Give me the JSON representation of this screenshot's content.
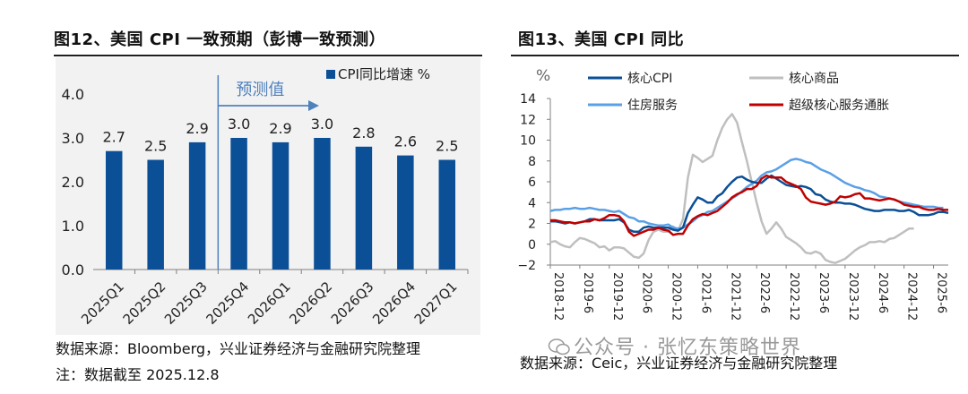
{
  "left": {
    "title": "图12、美国 CPI 一致预期（彭博一致预测）",
    "source": "数据来源：Bloomberg，兴业证券经济与金融研究院整理",
    "note": "注：数据截至 2025.12.8"
  },
  "right": {
    "title": "图13、美国 CPI 同比",
    "source": "数据来源：Ceic，兴业证券经济与金融研究院整理"
  },
  "watermark": "公众号 · 张忆东策略世界",
  "colors": {
    "bar": "#0b4f96",
    "core_cpi": "#0b4f96",
    "core_goods": "#bfbfbf",
    "shelter": "#5aa0e6",
    "supercore": "#c00000",
    "forecast_arrow": "#4f81bd"
  },
  "chart_data": [
    {
      "type": "bar",
      "categories": [
        "2025Q1",
        "2025Q2",
        "2025Q3",
        "2025Q4",
        "2026Q1",
        "2026Q2",
        "2026Q3",
        "2026Q4",
        "2027Q1"
      ],
      "series": [
        {
          "name": "CPI同比增速 %",
          "values": [
            2.7,
            2.5,
            2.9,
            3.0,
            2.9,
            3.0,
            2.8,
            2.6,
            2.5
          ]
        }
      ],
      "data_labels": [
        "2.7",
        "2.5",
        "2.9",
        "3.0",
        "2.9",
        "3.0",
        "2.8",
        "2.6",
        "2.5"
      ],
      "ylim": [
        0,
        4
      ],
      "yticks": [
        "0.0",
        "1.0",
        "2.0",
        "3.0",
        "4.0"
      ],
      "annotation": "预测值",
      "forecast_start": "2025Q4",
      "legend": "top-right",
      "grid": false
    },
    {
      "type": "line",
      "ylabel": "%",
      "ylim": [
        -2,
        14
      ],
      "yticks": [
        "−2",
        "0",
        "2",
        "4",
        "6",
        "8",
        "10",
        "12",
        "14"
      ],
      "xticks": [
        "2018-12",
        "2019-6",
        "2019-12",
        "2020-6",
        "2020-12",
        "2021-6",
        "2021-12",
        "2022-6",
        "2022-12",
        "2023-6",
        "2023-12",
        "2024-6",
        "2024-12",
        "2025-6"
      ],
      "legend": "top",
      "grid": false,
      "x_note": "monthly points; index 0 = 2018-12, six months per tick",
      "series": [
        {
          "name": "核心CPI",
          "key": "core_cpi",
          "values": [
            2.2,
            2.2,
            2.1,
            2.0,
            2.1,
            2.0,
            2.1,
            2.2,
            2.4,
            2.4,
            2.3,
            2.3,
            2.3,
            2.3,
            2.4,
            2.1,
            1.4,
            1.2,
            1.2,
            1.6,
            1.7,
            1.6,
            1.6,
            1.6,
            1.6,
            1.4,
            1.3,
            1.6,
            3.0,
            3.8,
            4.5,
            4.3,
            4.0,
            4.0,
            4.6,
            4.9,
            5.5,
            6.0,
            6.4,
            6.5,
            6.2,
            6.0,
            5.9,
            5.9,
            6.3,
            6.6,
            6.3,
            6.0,
            5.7,
            5.6,
            5.5,
            5.6,
            5.5,
            5.3,
            4.8,
            4.7,
            4.3,
            4.1,
            4.0,
            4.0,
            3.9,
            3.9,
            3.8,
            3.6,
            3.4,
            3.3,
            3.2,
            3.2,
            3.3,
            3.3,
            3.3,
            3.2,
            3.2,
            3.3,
            3.1,
            2.8,
            2.8,
            2.8,
            2.9,
            3.1,
            3.1,
            3.0
          ]
        },
        {
          "name": "核心商品",
          "key": "core_goods",
          "values": [
            0.2,
            0.3,
            0.0,
            -0.2,
            -0.3,
            0.2,
            0.6,
            0.5,
            0.3,
            0.1,
            -0.3,
            -0.2,
            -0.6,
            -0.3,
            -0.3,
            -0.4,
            -0.8,
            -1.2,
            -1.3,
            -0.9,
            0.4,
            1.2,
            1.4,
            1.2,
            1.2,
            1.7,
            1.3,
            2.4,
            6.4,
            8.6,
            8.3,
            7.9,
            8.2,
            8.5,
            10.0,
            11.2,
            12.0,
            12.5,
            11.7,
            9.8,
            8.0,
            6.0,
            4.0,
            2.2,
            1.0,
            1.5,
            2.1,
            1.5,
            0.7,
            0.4,
            0.1,
            -0.3,
            -0.8,
            -0.9,
            -0.7,
            -0.9,
            -1.5,
            -1.7,
            -1.8,
            -1.6,
            -1.4,
            -1.0,
            -0.6,
            -0.3,
            -0.1,
            0.2,
            0.2,
            0.3,
            0.2,
            0.5,
            0.6,
            0.9,
            1.2,
            1.5,
            1.5
          ]
        },
        {
          "name": "住房服务",
          "key": "shelter",
          "values": [
            3.2,
            3.3,
            3.3,
            3.4,
            3.4,
            3.5,
            3.4,
            3.4,
            3.5,
            3.4,
            3.3,
            3.3,
            3.2,
            3.1,
            3.2,
            2.9,
            2.6,
            2.5,
            2.2,
            2.2,
            2.0,
            1.9,
            1.8,
            1.8,
            1.9,
            1.6,
            1.5,
            1.6,
            1.9,
            2.2,
            2.6,
            2.8,
            3.1,
            3.2,
            3.5,
            3.8,
            4.1,
            4.4,
            4.7,
            5.1,
            5.5,
            5.8,
            6.1,
            6.6,
            6.9,
            7.0,
            7.2,
            7.5,
            7.8,
            8.1,
            8.2,
            8.1,
            7.9,
            7.8,
            7.5,
            7.2,
            7.0,
            6.8,
            6.5,
            6.2,
            5.9,
            5.7,
            5.5,
            5.4,
            5.2,
            5.1,
            4.9,
            4.6,
            4.5,
            4.4,
            4.3,
            4.1,
            4.0,
            3.9,
            3.8,
            3.7,
            3.6,
            3.6,
            3.6,
            3.5,
            3.5
          ]
        },
        {
          "name": "超级核心服务通胀",
          "key": "supercore",
          "values": [
            2.3,
            2.3,
            2.2,
            2.1,
            2.1,
            2.0,
            2.1,
            2.2,
            2.2,
            2.4,
            2.3,
            2.5,
            2.8,
            2.8,
            2.7,
            2.2,
            1.2,
            0.8,
            1.0,
            1.2,
            1.4,
            1.4,
            1.6,
            1.4,
            1.3,
            0.9,
            1.0,
            1.0,
            1.8,
            2.4,
            2.7,
            2.9,
            2.8,
            3.0,
            3.2,
            3.6,
            4.0,
            4.5,
            4.8,
            5.0,
            5.3,
            5.3,
            5.6,
            6.3,
            6.6,
            6.4,
            6.4,
            6.4,
            6.0,
            5.8,
            5.6,
            5.3,
            4.5,
            4.1,
            4.0,
            3.9,
            3.8,
            3.9,
            4.1,
            4.6,
            4.5,
            4.6,
            4.8,
            4.9,
            4.4,
            4.4,
            4.3,
            4.2,
            4.3,
            4.4,
            4.3,
            4.1,
            3.8,
            3.7,
            3.6,
            3.6,
            3.4,
            3.3,
            3.3,
            3.4,
            3.3,
            3.3
          ]
        }
      ]
    }
  ]
}
